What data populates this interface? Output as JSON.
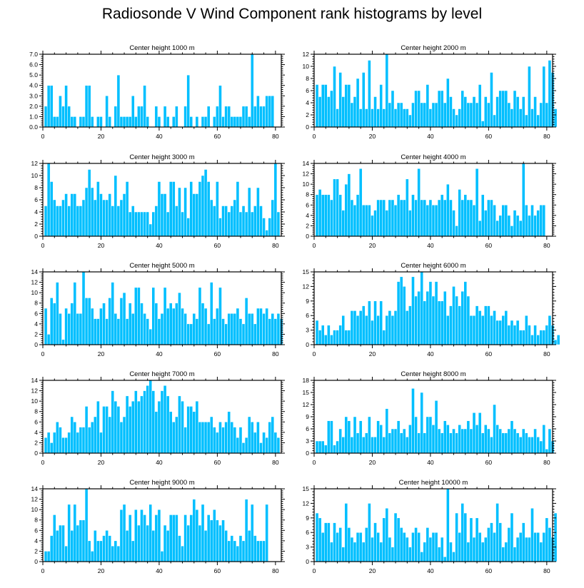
{
  "title": "Radiosonde V Wind Component rank histograms by level",
  "chart_data": [
    {
      "type": "bar",
      "title": "Center height 1000 m",
      "ylim": [
        0,
        7
      ],
      "yticks": [
        0,
        1,
        2,
        3,
        4,
        5,
        6,
        7
      ],
      "yticklabels": [
        "0.0",
        "1.0",
        "2.0",
        "3.0",
        "4.0",
        "5.0",
        "6.0",
        "7.0"
      ],
      "xlim": [
        0,
        82
      ],
      "xticks": [
        0,
        20,
        40,
        60,
        80
      ],
      "values": [
        2,
        4,
        4,
        1,
        1,
        3,
        2,
        4,
        2,
        1,
        1,
        0,
        1,
        1,
        4,
        4,
        1,
        0,
        1,
        1,
        0,
        3,
        1,
        0,
        2,
        5,
        1,
        1,
        1,
        1,
        3,
        1,
        2,
        2,
        4,
        1,
        0,
        0,
        2,
        1,
        0,
        2,
        1,
        0,
        1,
        2,
        0,
        0,
        2,
        5,
        1,
        0,
        1,
        0,
        1,
        1,
        2,
        0,
        1,
        2,
        4,
        1,
        2,
        2,
        1,
        1,
        1,
        1,
        2,
        2,
        1,
        7,
        2,
        3,
        2,
        2,
        3,
        3,
        3
      ]
    },
    {
      "type": "bar",
      "title": "Center height 2000 m",
      "ylim": [
        0,
        12
      ],
      "yticks": [
        0,
        2,
        4,
        6,
        8,
        10,
        12
      ],
      "yticklabels": [
        "0",
        "2",
        "4",
        "6",
        "8",
        "10",
        "12"
      ],
      "xlim": [
        0,
        82
      ],
      "xticks": [
        0,
        20,
        40,
        60,
        80
      ],
      "values": [
        7,
        5,
        7,
        7,
        5,
        6,
        10,
        3,
        9,
        5,
        7,
        7,
        4,
        5,
        8,
        3,
        9,
        3,
        11,
        3,
        5,
        3,
        7,
        3,
        12,
        4,
        6,
        3,
        4,
        4,
        3,
        3,
        2,
        4,
        6,
        6,
        4,
        4,
        7,
        3,
        4,
        4,
        6,
        6,
        4,
        8,
        5,
        3,
        2,
        3,
        6,
        5,
        4,
        4,
        5,
        4,
        7,
        1,
        5,
        4,
        9,
        2,
        5,
        6,
        6,
        6,
        4,
        3,
        6,
        5,
        3,
        5,
        2,
        10,
        3,
        5,
        2,
        4,
        10,
        4,
        11,
        9,
        3
      ]
    },
    {
      "type": "bar",
      "title": "Center height 3000 m",
      "ylim": [
        0,
        12
      ],
      "yticks": [
        0,
        2,
        4,
        6,
        8,
        10,
        12
      ],
      "yticklabels": [
        "0",
        "2",
        "4",
        "6",
        "8",
        "10",
        "12"
      ],
      "xlim": [
        0,
        82
      ],
      "xticks": [
        0,
        20,
        40,
        60,
        80
      ],
      "values": [
        5,
        12,
        9,
        6,
        5,
        5,
        6,
        7,
        5,
        7,
        7,
        5,
        5,
        6,
        8,
        11,
        8,
        6,
        9,
        7,
        6,
        6,
        7,
        5,
        10,
        5,
        6,
        7,
        9,
        4,
        5,
        4,
        4,
        4,
        4,
        4,
        2,
        4,
        5,
        9,
        7,
        7,
        4,
        9,
        9,
        5,
        8,
        4,
        8,
        3,
        9,
        7,
        7,
        9,
        10,
        11,
        9,
        6,
        5,
        9,
        3,
        5,
        5,
        4,
        5,
        6,
        9,
        4,
        5,
        4,
        8,
        4,
        5,
        8,
        5,
        3,
        1,
        3,
        6,
        12,
        4
      ]
    },
    {
      "type": "bar",
      "title": "Center height 4000 m",
      "ylim": [
        0,
        14
      ],
      "yticks": [
        0,
        2,
        4,
        6,
        8,
        10,
        12,
        14
      ],
      "yticklabels": [
        "0",
        "2",
        "4",
        "6",
        "8",
        "10",
        "12",
        "14"
      ],
      "xlim": [
        0,
        82
      ],
      "xticks": [
        0,
        20,
        40,
        60,
        80
      ],
      "values": [
        8,
        9,
        8,
        8,
        8,
        7,
        11,
        11,
        8,
        5,
        10,
        12,
        7,
        6,
        8,
        13,
        6,
        6,
        6,
        4,
        5,
        7,
        7,
        7,
        5,
        7,
        7,
        6,
        8,
        7,
        7,
        11,
        5,
        8,
        7,
        13,
        7,
        7,
        6,
        7,
        6,
        6,
        7,
        8,
        7,
        10,
        7,
        5,
        2,
        9,
        7,
        8,
        7,
        7,
        6,
        13,
        3,
        8,
        5,
        7,
        7,
        6,
        3,
        4,
        6,
        6,
        4,
        2,
        5,
        4,
        3,
        14,
        6,
        4,
        6,
        4,
        5,
        6,
        6
      ]
    },
    {
      "type": "bar",
      "title": "Center height 5000 m",
      "ylim": [
        0,
        14
      ],
      "yticks": [
        0,
        2,
        4,
        6,
        8,
        10,
        12,
        14
      ],
      "yticklabels": [
        "0",
        "2",
        "4",
        "6",
        "8",
        "10",
        "12",
        "14"
      ],
      "xlim": [
        0,
        82
      ],
      "xticks": [
        0,
        20,
        40,
        60,
        80
      ],
      "values": [
        7,
        2,
        9,
        8,
        12,
        6,
        1,
        7,
        6,
        8,
        12,
        6,
        6,
        14,
        9,
        9,
        7,
        5,
        5,
        7,
        8,
        5,
        9,
        12,
        6,
        5,
        9,
        10,
        5,
        8,
        6,
        11,
        11,
        8,
        6,
        5,
        3,
        11,
        8,
        5,
        6,
        11,
        7,
        8,
        7,
        8,
        10,
        7,
        6,
        4,
        4,
        6,
        5,
        11,
        8,
        7,
        4,
        12,
        5,
        7,
        11,
        5,
        4,
        6,
        6,
        6,
        7,
        5,
        4,
        9,
        6,
        6,
        4,
        7,
        7,
        6,
        7,
        5,
        6,
        5,
        6,
        5
      ]
    },
    {
      "type": "bar",
      "title": "Center height 6000 m",
      "ylim": [
        0,
        15
      ],
      "yticks": [
        0,
        3,
        6,
        9,
        12,
        15
      ],
      "yticklabels": [
        "0",
        "3",
        "6",
        "9",
        "12",
        "15"
      ],
      "xlim": [
        0,
        82
      ],
      "xticks": [
        0,
        20,
        40,
        60,
        80
      ],
      "values": [
        5,
        3,
        4,
        2,
        4,
        2,
        3,
        3,
        4,
        6,
        3,
        3,
        7,
        7,
        6,
        7,
        8,
        6,
        9,
        5,
        9,
        6,
        9,
        3,
        6,
        7,
        6,
        7,
        13,
        14,
        12,
        7,
        8,
        14,
        10,
        11,
        15,
        9,
        11,
        13,
        10,
        13,
        9,
        9,
        11,
        6,
        8,
        12,
        10,
        8,
        11,
        13,
        10,
        6,
        6,
        8,
        7,
        6,
        8,
        8,
        6,
        7,
        5,
        5,
        6,
        7,
        4,
        5,
        4,
        5,
        3,
        3,
        6,
        4,
        2,
        4,
        2,
        3,
        3,
        4,
        6,
        4,
        1,
        2
      ]
    },
    {
      "type": "bar",
      "title": "Center height 7000 m",
      "ylim": [
        0,
        14
      ],
      "yticks": [
        0,
        2,
        4,
        6,
        8,
        10,
        12,
        14
      ],
      "yticklabels": [
        "0",
        "2",
        "4",
        "6",
        "8",
        "10",
        "12",
        "14"
      ],
      "xlim": [
        0,
        82
      ],
      "xticks": [
        0,
        20,
        40,
        60,
        80
      ],
      "values": [
        3,
        4,
        2,
        4,
        6,
        5,
        3,
        3,
        4,
        7,
        6,
        4,
        5,
        5,
        9,
        5,
        6,
        7,
        10,
        4,
        9,
        9,
        7,
        12,
        10,
        9,
        6,
        7,
        11,
        9,
        10,
        12,
        10,
        11,
        12,
        13,
        14,
        12,
        8,
        10,
        12,
        13,
        11,
        8,
        6,
        7,
        11,
        10,
        5,
        9,
        9,
        8,
        10,
        6,
        6,
        6,
        6,
        7,
        5,
        4,
        6,
        5,
        6,
        8,
        6,
        5,
        3,
        5,
        2,
        3,
        7,
        6,
        4,
        6,
        2,
        4,
        3,
        6,
        7,
        4,
        3
      ]
    },
    {
      "type": "bar",
      "title": "Center height 8000 m",
      "ylim": [
        0,
        18
      ],
      "yticks": [
        0,
        3,
        6,
        9,
        12,
        15,
        18
      ],
      "yticklabels": [
        "0",
        "3",
        "6",
        "9",
        "12",
        "15",
        "18"
      ],
      "xlim": [
        0,
        82
      ],
      "xticks": [
        0,
        20,
        40,
        60,
        80
      ],
      "values": [
        3,
        3,
        3,
        2,
        8,
        8,
        2,
        3,
        6,
        4,
        9,
        8,
        4,
        9,
        5,
        8,
        4,
        5,
        9,
        4,
        4,
        8,
        7,
        4,
        11,
        5,
        6,
        6,
        8,
        5,
        6,
        4,
        7,
        16,
        9,
        5,
        15,
        5,
        9,
        9,
        7,
        13,
        6,
        5,
        8,
        7,
        5,
        6,
        5,
        7,
        6,
        6,
        8,
        6,
        10,
        7,
        10,
        5,
        7,
        6,
        4,
        12,
        7,
        6,
        5,
        5,
        6,
        8,
        6,
        5,
        4,
        6,
        5,
        4,
        4,
        6,
        4,
        3,
        7,
        1,
        6,
        3
      ]
    },
    {
      "type": "bar",
      "title": "Center height 9000 m",
      "ylim": [
        0,
        14
      ],
      "yticks": [
        0,
        2,
        4,
        6,
        8,
        10,
        12,
        14
      ],
      "yticklabels": [
        "0",
        "2",
        "4",
        "6",
        "8",
        "10",
        "12",
        "14"
      ],
      "xlim": [
        0,
        82
      ],
      "xticks": [
        0,
        20,
        40,
        60,
        80
      ],
      "values": [
        2,
        2,
        5,
        9,
        6,
        7,
        7,
        3,
        11,
        6,
        11,
        7,
        8,
        8,
        14,
        4,
        2,
        6,
        4,
        4,
        5,
        6,
        5,
        3,
        4,
        3,
        10,
        11,
        6,
        9,
        4,
        10,
        7,
        10,
        9,
        7,
        11,
        6,
        9,
        10,
        2,
        7,
        6,
        9,
        9,
        9,
        5,
        3,
        9,
        7,
        9,
        12,
        10,
        7,
        11,
        6,
        9,
        8,
        10,
        8,
        7,
        8,
        6,
        4,
        5,
        4,
        3,
        5,
        4,
        12,
        6,
        11,
        5,
        4,
        4,
        4,
        11
      ]
    },
    {
      "type": "bar",
      "title": "Center height 10000 m",
      "ylim": [
        0,
        15
      ],
      "yticks": [
        0,
        3,
        6,
        9,
        12,
        15
      ],
      "yticklabels": [
        "0",
        "3",
        "6",
        "9",
        "12",
        "15"
      ],
      "xlim": [
        0,
        82
      ],
      "xticks": [
        0,
        20,
        40,
        60,
        80
      ],
      "values": [
        10,
        9,
        6,
        8,
        8,
        4,
        8,
        6,
        7,
        3,
        12,
        7,
        5,
        4,
        6,
        6,
        4,
        7,
        12,
        5,
        8,
        6,
        4,
        9,
        11,
        5,
        3,
        10,
        9,
        7,
        6,
        5,
        3,
        6,
        7,
        6,
        2,
        4,
        7,
        5,
        6,
        6,
        3,
        5,
        1,
        15,
        4,
        2,
        10,
        6,
        12,
        10,
        4,
        9,
        5,
        9,
        6,
        4,
        5,
        7,
        8,
        6,
        12,
        8,
        3,
        4,
        7,
        10,
        3,
        5,
        6,
        8,
        5,
        5,
        11,
        6,
        6,
        4,
        6,
        9,
        7,
        5,
        10
      ]
    }
  ]
}
